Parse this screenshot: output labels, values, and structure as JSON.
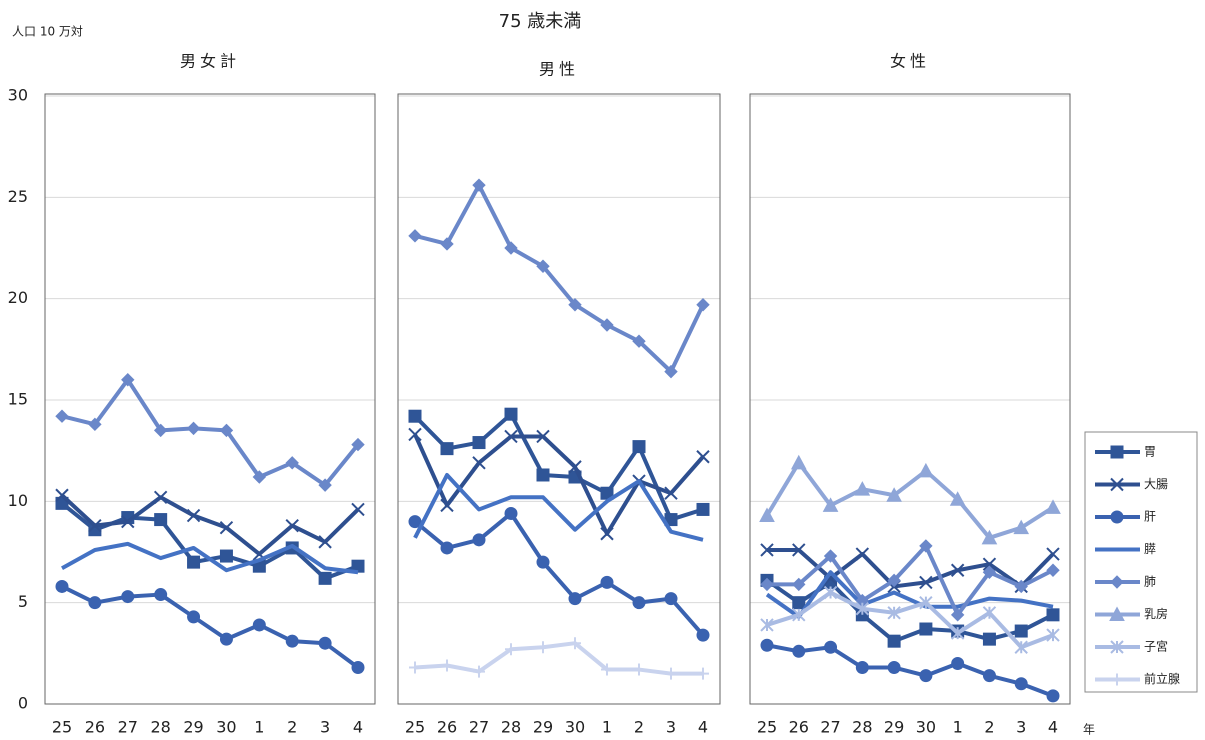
{
  "title": "75 歳未満",
  "unit_label": "人口 10 万対",
  "x_unit": "年",
  "legend": [
    {
      "name": "胃",
      "color": "#2f5597",
      "marker": "square"
    },
    {
      "name": "大腸",
      "color": "#2e4f8f",
      "marker": "x"
    },
    {
      "name": "肝",
      "color": "#3a62b0",
      "marker": "circle"
    },
    {
      "name": "膵",
      "color": "#4472c4",
      "marker": "none"
    },
    {
      "name": "肺",
      "color": "#6a87c9",
      "marker": "diamond"
    },
    {
      "name": "乳房",
      "color": "#8fa6d8",
      "marker": "triangle"
    },
    {
      "name": "子宮",
      "color": "#a9bbe3",
      "marker": "asterisk"
    },
    {
      "name": "前立腺",
      "color": "#c9d3ee",
      "marker": "plus"
    }
  ],
  "chart_data": [
    {
      "type": "line",
      "title": "男女計",
      "categories": [
        "25",
        "26",
        "27",
        "28",
        "29",
        "30",
        "1",
        "2",
        "3",
        "4"
      ],
      "ylim": [
        0,
        30
      ],
      "yticks": [
        0,
        5,
        10,
        15,
        20,
        25,
        30
      ],
      "grid": true,
      "series": [
        {
          "name": "胃",
          "values": [
            9.9,
            8.6,
            9.2,
            9.1,
            7.0,
            7.3,
            6.8,
            7.7,
            6.2,
            6.8
          ]
        },
        {
          "name": "大腸",
          "values": [
            10.3,
            8.8,
            9.0,
            10.2,
            9.3,
            8.7,
            7.4,
            8.8,
            8.0,
            9.6
          ]
        },
        {
          "name": "肝",
          "values": [
            5.8,
            5.0,
            5.3,
            5.4,
            4.3,
            3.2,
            3.9,
            3.1,
            3.0,
            1.8
          ]
        },
        {
          "name": "膵",
          "values": [
            6.7,
            7.6,
            7.9,
            7.2,
            7.7,
            6.6,
            7.1,
            7.8,
            6.7,
            6.5
          ]
        },
        {
          "name": "肺",
          "values": [
            14.2,
            13.8,
            16.0,
            13.5,
            13.6,
            13.5,
            11.2,
            11.9,
            10.8,
            12.8
          ]
        }
      ]
    },
    {
      "type": "line",
      "title": "男性",
      "categories": [
        "25",
        "26",
        "27",
        "28",
        "29",
        "30",
        "1",
        "2",
        "3",
        "4"
      ],
      "ylim": [
        0,
        30
      ],
      "yticks": [
        0,
        5,
        10,
        15,
        20,
        25,
        30
      ],
      "grid": true,
      "series": [
        {
          "name": "胃",
          "values": [
            14.2,
            12.6,
            12.9,
            14.3,
            11.3,
            11.2,
            10.4,
            12.7,
            9.1,
            9.6
          ]
        },
        {
          "name": "大腸",
          "values": [
            13.3,
            9.8,
            11.9,
            13.2,
            13.2,
            11.7,
            8.4,
            11.0,
            10.4,
            12.2
          ]
        },
        {
          "name": "肝",
          "values": [
            9.0,
            7.7,
            8.1,
            9.4,
            7.0,
            5.2,
            6.0,
            5.0,
            5.2,
            3.4
          ]
        },
        {
          "name": "膵",
          "values": [
            8.2,
            11.3,
            9.6,
            10.2,
            10.2,
            8.6,
            10.0,
            11.0,
            8.5,
            8.1
          ]
        },
        {
          "name": "肺",
          "values": [
            23.1,
            22.7,
            25.6,
            22.5,
            21.6,
            19.7,
            18.7,
            17.9,
            16.4,
            19.7
          ]
        },
        {
          "name": "前立腺",
          "values": [
            1.8,
            1.9,
            1.6,
            2.7,
            2.8,
            3.0,
            1.7,
            1.7,
            1.5,
            1.5
          ]
        }
      ]
    },
    {
      "type": "line",
      "title": "女性",
      "categories": [
        "25",
        "26",
        "27",
        "28",
        "29",
        "30",
        "1",
        "2",
        "3",
        "4"
      ],
      "ylim": [
        0,
        30
      ],
      "yticks": [
        0,
        5,
        10,
        15,
        20,
        25,
        30
      ],
      "grid": true,
      "series": [
        {
          "name": "胃",
          "values": [
            6.1,
            5.0,
            6.0,
            4.4,
            3.1,
            3.7,
            3.6,
            3.2,
            3.6,
            4.4
          ]
        },
        {
          "name": "大腸",
          "values": [
            7.6,
            7.6,
            6.2,
            7.4,
            5.8,
            6.0,
            6.6,
            6.9,
            5.8,
            7.4
          ]
        },
        {
          "name": "肝",
          "values": [
            2.9,
            2.6,
            2.8,
            1.8,
            1.8,
            1.4,
            2.0,
            1.4,
            1.0,
            0.4
          ]
        },
        {
          "name": "膵",
          "values": [
            5.4,
            4.3,
            6.5,
            4.9,
            5.5,
            4.8,
            4.8,
            5.2,
            5.1,
            4.8
          ]
        },
        {
          "name": "肺",
          "values": [
            5.9,
            5.9,
            7.3,
            5.1,
            6.1,
            7.8,
            4.4,
            6.5,
            5.8,
            6.6
          ]
        },
        {
          "name": "乳房",
          "values": [
            9.3,
            11.9,
            9.8,
            10.6,
            10.3,
            11.5,
            10.1,
            8.2,
            8.7,
            9.7
          ]
        },
        {
          "name": "子宮",
          "values": [
            3.9,
            4.4,
            5.5,
            4.7,
            4.5,
            5.0,
            3.5,
            4.5,
            2.8,
            3.4
          ]
        }
      ]
    }
  ]
}
